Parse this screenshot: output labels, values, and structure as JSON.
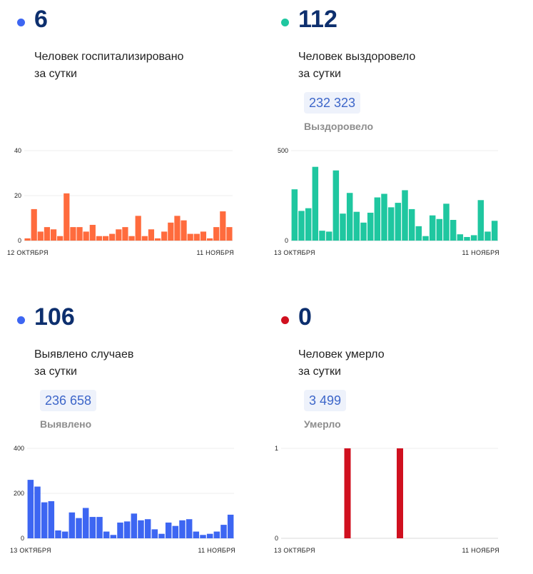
{
  "panels": [
    {
      "id": "hospitalized",
      "number": "6",
      "caption_line1": "Человек госпитализировано",
      "caption_line2": "за сутки",
      "badge": "",
      "sublabel": "",
      "dot_color": "#3d66f2"
    },
    {
      "id": "recovered",
      "number": "112",
      "caption_line1": "Человек выздоровело",
      "caption_line2": "за сутки",
      "badge": "232 323",
      "sublabel": "Выздоровело",
      "dot_color": "#1fc7a0"
    },
    {
      "id": "cases",
      "number": "106",
      "caption_line1": "Выявлено случаев",
      "caption_line2": "за сутки",
      "badge": "236 658",
      "sublabel": "Выявлено",
      "dot_color": "#3d66f2"
    },
    {
      "id": "deaths",
      "number": "0",
      "caption_line1": "Человек умерло",
      "caption_line2": "за сутки",
      "badge": "3 499",
      "sublabel": "Умерло",
      "dot_color": "#d0101f"
    }
  ],
  "chart_data": [
    {
      "type": "bar",
      "color": "#ff6b3d",
      "ylim": [
        0,
        40
      ],
      "yticks": [
        0,
        20,
        40
      ],
      "x_start_label": "12 ОКТЯБРЯ",
      "x_end_label": "11 НОЯБРЯ",
      "values": [
        1,
        14,
        4,
        6,
        5,
        2,
        21,
        6,
        6,
        4,
        7,
        2,
        2,
        3,
        5,
        6,
        2,
        11,
        2,
        5,
        1,
        4,
        8,
        11,
        9,
        3,
        3,
        4,
        1,
        6,
        13,
        6
      ]
    },
    {
      "type": "bar",
      "color": "#1fc7a0",
      "ylim": [
        0,
        500
      ],
      "yticks": [
        0,
        500
      ],
      "x_start_label": "13 ОКТЯБРЯ",
      "x_end_label": "11 НОЯБРЯ",
      "values": [
        285,
        165,
        180,
        410,
        55,
        50,
        390,
        150,
        265,
        160,
        100,
        155,
        240,
        260,
        185,
        210,
        280,
        175,
        80,
        25,
        140,
        120,
        205,
        115,
        35,
        20,
        30,
        225,
        50,
        110
      ]
    },
    {
      "type": "bar",
      "color": "#3d66f2",
      "ylim": [
        0,
        400
      ],
      "yticks": [
        0,
        200,
        400
      ],
      "x_start_label": "13 ОКТЯБРЯ",
      "x_end_label": "11 НОЯБРЯ",
      "values": [
        260,
        230,
        160,
        165,
        35,
        30,
        115,
        90,
        135,
        95,
        95,
        30,
        15,
        70,
        75,
        110,
        80,
        85,
        40,
        20,
        70,
        55,
        80,
        85,
        30,
        15,
        20,
        30,
        60,
        105
      ]
    },
    {
      "type": "bar",
      "color": "#d0101f",
      "ylim": [
        0,
        1
      ],
      "yticks": [
        0,
        1
      ],
      "x_start_label": "13 ОКТЯБРЯ",
      "x_end_label": "11 НОЯБРЯ",
      "values": [
        0,
        0,
        0,
        0,
        0,
        1,
        0,
        0,
        0,
        0,
        0,
        0,
        1,
        0,
        0,
        0,
        0,
        0,
        0,
        0,
        0,
        0,
        0,
        0,
        0,
        0,
        0,
        0,
        0,
        0,
        0,
        0
      ]
    }
  ]
}
